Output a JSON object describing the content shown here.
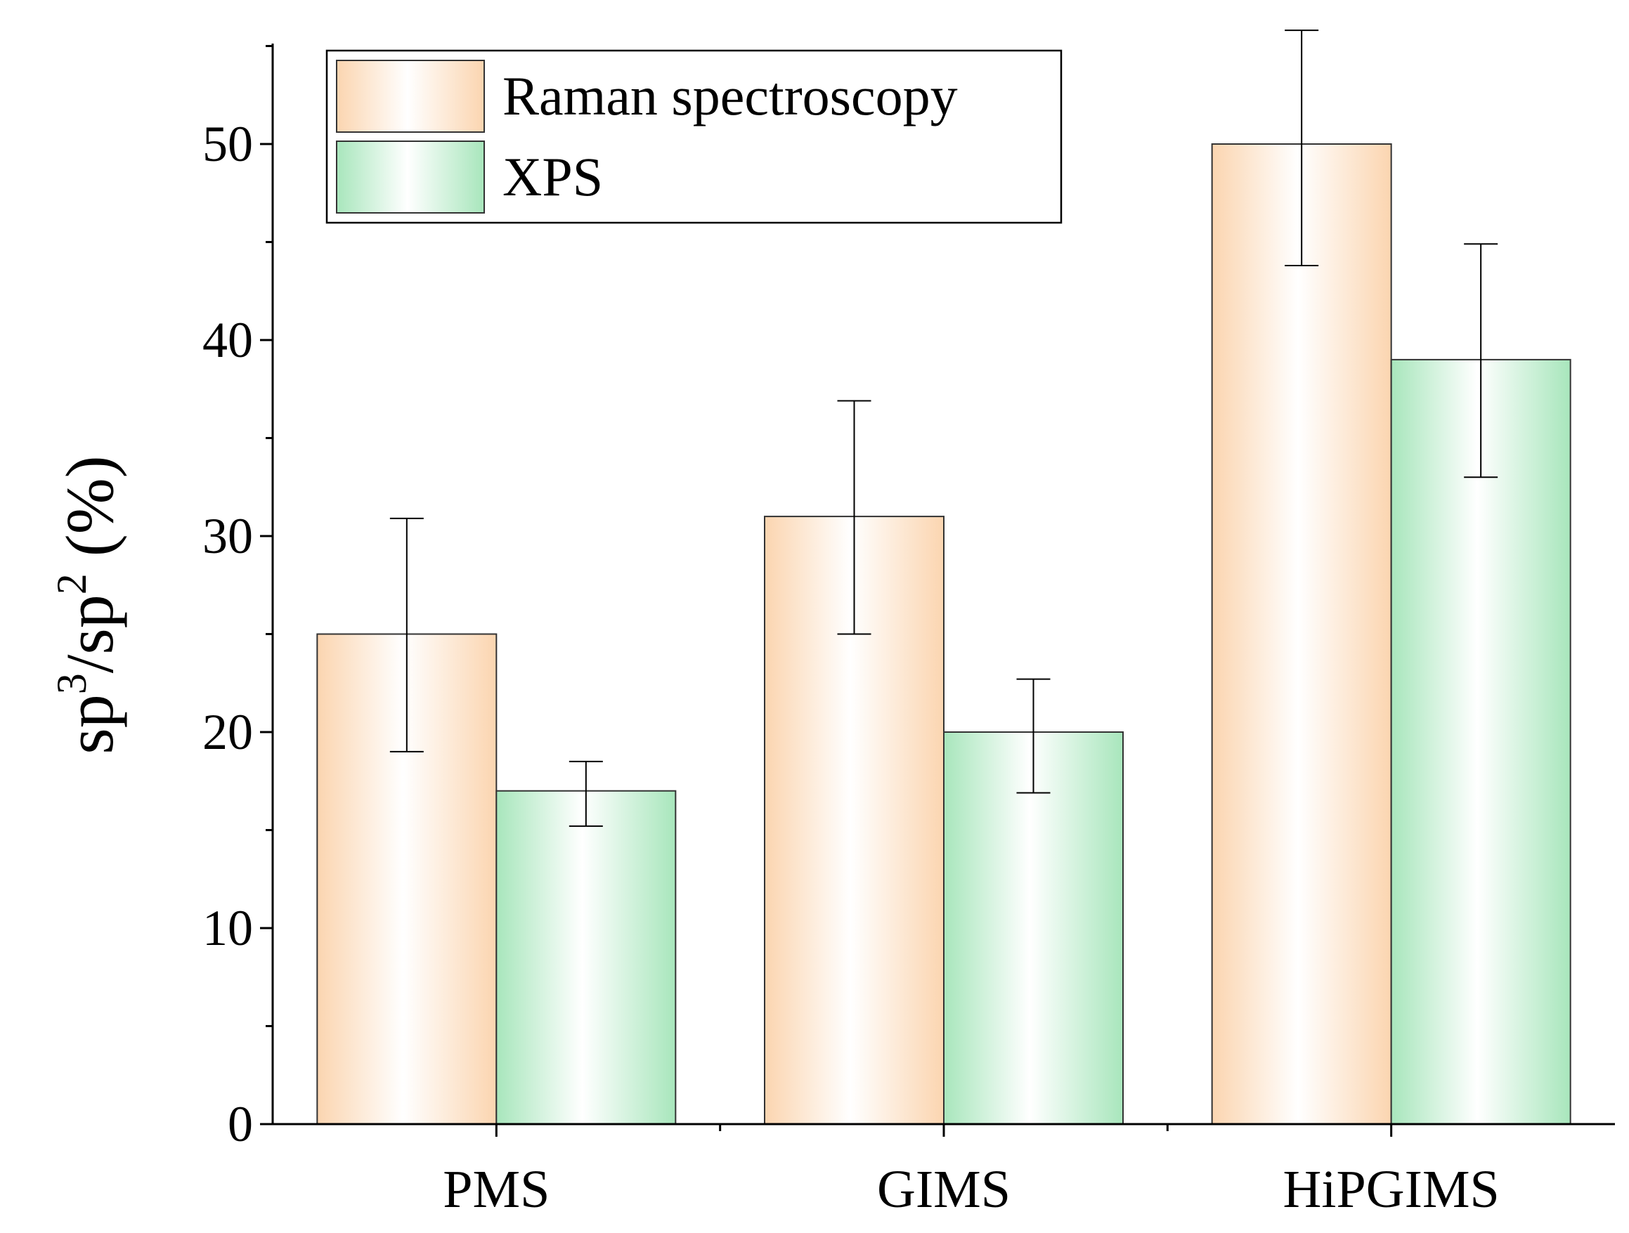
{
  "chart_data": {
    "type": "bar",
    "title": "",
    "xlabel": "",
    "ylabel": "sp3/sp2 (%)",
    "ylabel_parts": [
      "sp",
      "3",
      "/sp",
      "2",
      " (%)"
    ],
    "categories": [
      "PMS",
      "GIMS",
      "HiPGIMS"
    ],
    "ylim": [
      0,
      55
    ],
    "yticks": [
      0,
      10,
      20,
      30,
      40,
      50
    ],
    "ytick_labels": [
      "0",
      "10",
      "20",
      "30",
      "40",
      "50"
    ],
    "grid": false,
    "legend_position": "top-left",
    "series": [
      {
        "name": "Raman spectroscopy",
        "values": [
          25,
          31,
          50
        ],
        "errors_low": [
          19,
          25,
          43.8
        ],
        "errors_high": [
          30.9,
          36.9,
          55.8
        ],
        "color": "#FBD5B0"
      },
      {
        "name": "XPS",
        "values": [
          17,
          20,
          39
        ],
        "errors_low": [
          15.2,
          16.9,
          33
        ],
        "errors_high": [
          18.5,
          22.7,
          44.9
        ],
        "color": "#A8E6BC"
      }
    ]
  }
}
